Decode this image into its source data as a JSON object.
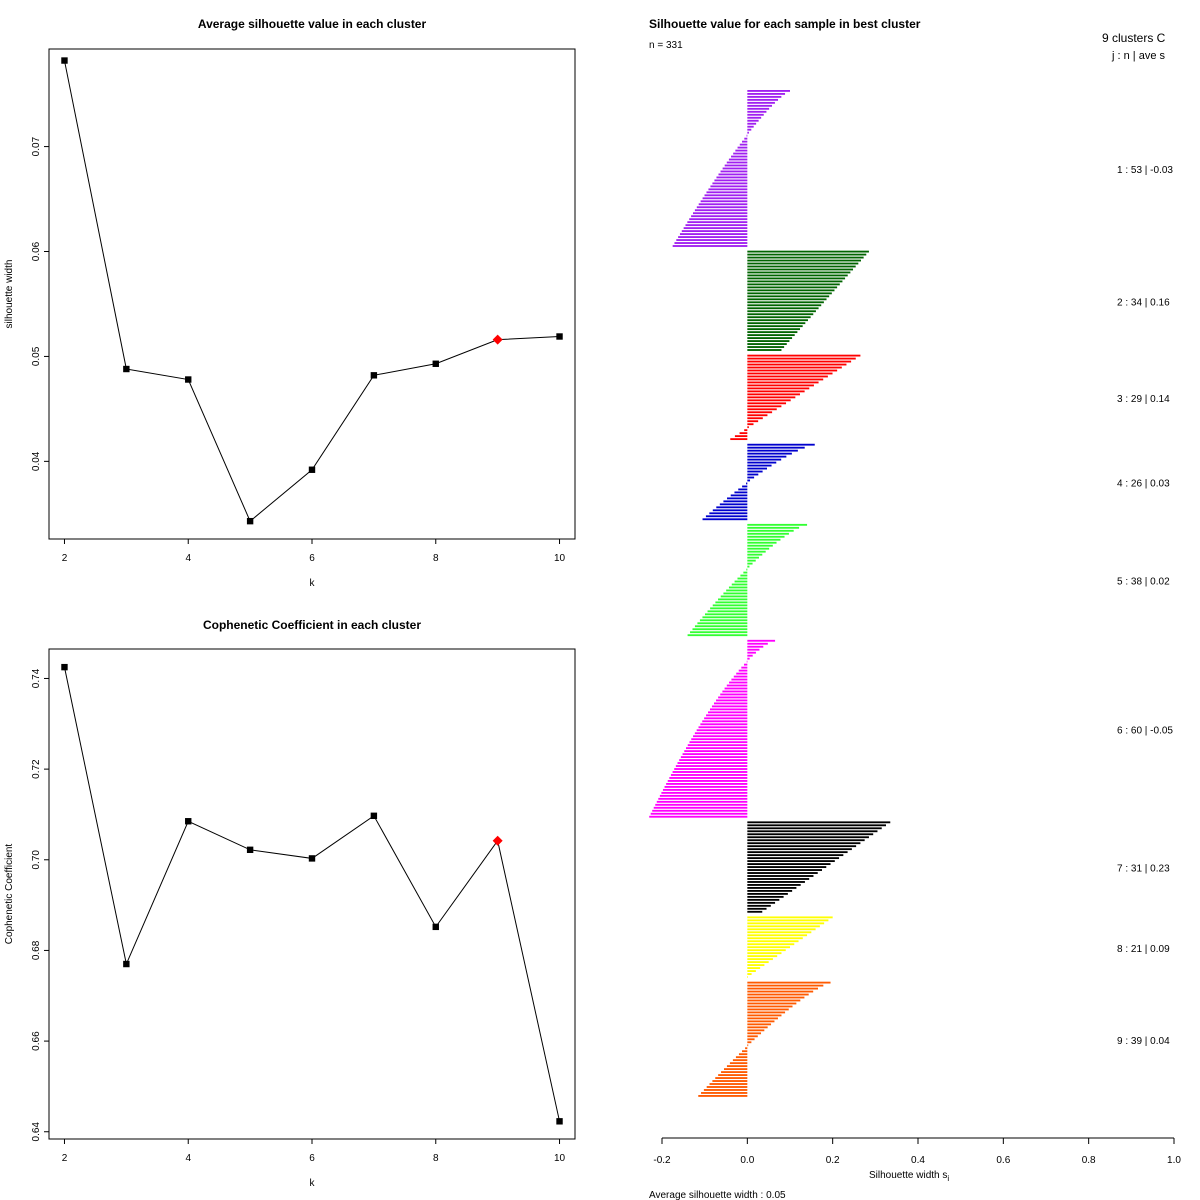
{
  "chart_data": [
    {
      "type": "line",
      "title": "Average silhouette value in each cluster",
      "xlabel": "k",
      "ylabel": "silhouette width",
      "x": [
        2,
        3,
        4,
        5,
        6,
        7,
        8,
        9,
        10
      ],
      "values": [
        0.0782,
        0.0488,
        0.0478,
        0.0343,
        0.0392,
        0.0482,
        0.0493,
        0.0516,
        0.0519
      ],
      "highlight_x": 9,
      "highlight_color": "#ff0000",
      "xlim": [
        1.75,
        10.25
      ],
      "ylim": [
        0.0326,
        0.0793
      ],
      "xticks": [
        2,
        4,
        6,
        8,
        10
      ],
      "yticks": [
        0.04,
        0.05,
        0.06,
        0.07
      ],
      "ytick_labels": [
        "0.04",
        "0.05",
        "0.06",
        "0.07"
      ]
    },
    {
      "type": "line",
      "title": "Cophenetic Coefficient in each cluster",
      "xlabel": "k",
      "ylabel": "Cophenetic Coefficient",
      "x": [
        2,
        3,
        4,
        5,
        6,
        7,
        8,
        9,
        10
      ],
      "values": [
        0.7425,
        0.677,
        0.7085,
        0.7022,
        0.7003,
        0.7097,
        0.6852,
        0.7042,
        0.6423
      ],
      "highlight_x": 9,
      "highlight_color": "#ff0000",
      "xlim": [
        1.75,
        10.25
      ],
      "ylim": [
        0.6384,
        0.7465
      ],
      "xticks": [
        2,
        4,
        6,
        8,
        10
      ],
      "yticks": [
        0.64,
        0.66,
        0.68,
        0.7,
        0.72,
        0.74
      ],
      "ytick_labels": [
        "0.64",
        "0.66",
        "0.68",
        "0.70",
        "0.72",
        "0.74"
      ]
    },
    {
      "type": "bar",
      "orientation": "horizontal",
      "title": "Silhouette value for each sample in best cluster",
      "n_label": "n = 331",
      "xlabel": "Silhouette width s",
      "xlabel_sub": "i",
      "xlim": [
        -0.2,
        1.0
      ],
      "xticks": [
        -0.2,
        0.0,
        0.2,
        0.4,
        0.6,
        0.8,
        1.0
      ],
      "xtick_labels": [
        "-0.2",
        "0.0",
        "0.2",
        "0.4",
        "0.6",
        "0.8",
        "1.0"
      ],
      "avg_label": "Average silhouette width :  0.05",
      "legend_header": [
        "9  clusters  C",
        "j :  n  | ave     s"
      ],
      "clusters": [
        {
          "id": 1,
          "n": 53,
          "avg": -0.03,
          "label": "1 :  53  |  -0.03",
          "color": "#a020f0",
          "max": 0.1,
          "min": -0.175,
          "profile": 0.8
        },
        {
          "id": 2,
          "n": 34,
          "avg": 0.16,
          "label": "2 :  34  |  0.16",
          "color": "#006400",
          "max": 0.285,
          "min": 0.08,
          "profile": 1.0
        },
        {
          "id": 3,
          "n": 29,
          "avg": 0.14,
          "label": "3 :  29  |  0.14",
          "color": "#ff0000",
          "max": 0.265,
          "min": -0.04,
          "profile": 1.0
        },
        {
          "id": 4,
          "n": 26,
          "avg": 0.03,
          "label": "4 :  26  |  0.03",
          "color": "#0000cd",
          "max": 0.158,
          "min": -0.105,
          "profile": 0.75
        },
        {
          "id": 5,
          "n": 38,
          "avg": 0.02,
          "label": "5 :  38  |  0.02",
          "color": "#32ff32",
          "max": 0.14,
          "min": -0.14,
          "profile": 0.75
        },
        {
          "id": 6,
          "n": 60,
          "avg": -0.05,
          "label": "6 :  60  |  -0.05",
          "color": "#ff00ff",
          "max": 0.065,
          "min": -0.23,
          "profile": 0.7
        },
        {
          "id": 7,
          "n": 31,
          "avg": 0.23,
          "label": "7 :  31  |  0.23",
          "color": "#000000",
          "max": 0.335,
          "min": 0.035,
          "profile": 1.0
        },
        {
          "id": 8,
          "n": 21,
          "avg": 0.09,
          "label": "8 :  21  |  0.09",
          "color": "#ffff00",
          "max": 0.2,
          "min": 0.0,
          "profile": 1.0
        },
        {
          "id": 9,
          "n": 39,
          "avg": 0.04,
          "label": "9 :  39  |  0.04",
          "color": "#ff5a00",
          "max": 0.195,
          "min": -0.115,
          "profile": 0.8
        }
      ]
    }
  ]
}
